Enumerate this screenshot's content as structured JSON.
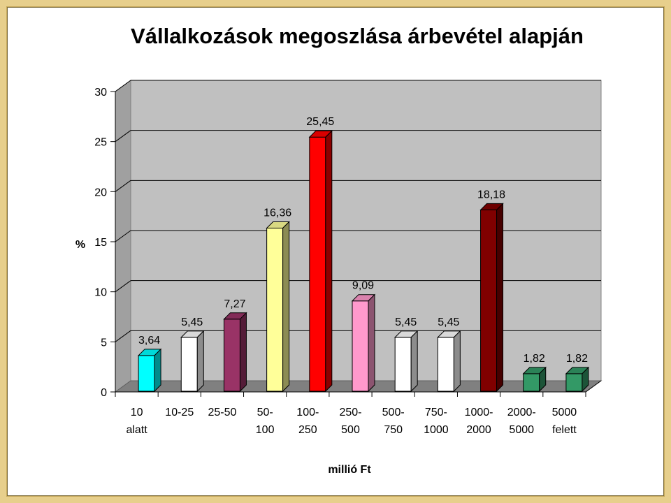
{
  "chart_data": {
    "type": "bar",
    "title": "Vállalkozások megoszlása árbevétel alapján",
    "ylabel": "%",
    "xlabel": "millió Ft",
    "ylim": [
      0,
      30
    ],
    "yticks": [
      "0",
      "5",
      "10",
      "15",
      "20",
      "25",
      "30"
    ],
    "categories": [
      [
        "10",
        "alatt"
      ],
      [
        "10-25",
        ""
      ],
      [
        "25-50",
        ""
      ],
      [
        "50-",
        "100"
      ],
      [
        "100-",
        "250"
      ],
      [
        "250-",
        "500"
      ],
      [
        "500-",
        "750"
      ],
      [
        "750-",
        "1000"
      ],
      [
        "1000-",
        "2000"
      ],
      [
        "2000-",
        "5000"
      ],
      [
        "5000",
        "felett"
      ]
    ],
    "values": [
      3.64,
      5.45,
      7.27,
      16.36,
      25.45,
      9.09,
      5.45,
      5.45,
      18.18,
      1.82,
      1.82
    ],
    "labels": [
      "3,64",
      "5,45",
      "7,27",
      "16,36",
      "25,45",
      "9,09",
      "5,45",
      "5,45",
      "18,18",
      "1,82",
      "1,82"
    ],
    "colors": [
      "#00ffff",
      "#ffffff",
      "#993366",
      "#ffff99",
      "#ff0000",
      "#ff99cc",
      "#ffffff",
      "#ffffff",
      "#800000",
      "#339966",
      "#339966"
    ],
    "grid": true,
    "legend": "none"
  }
}
